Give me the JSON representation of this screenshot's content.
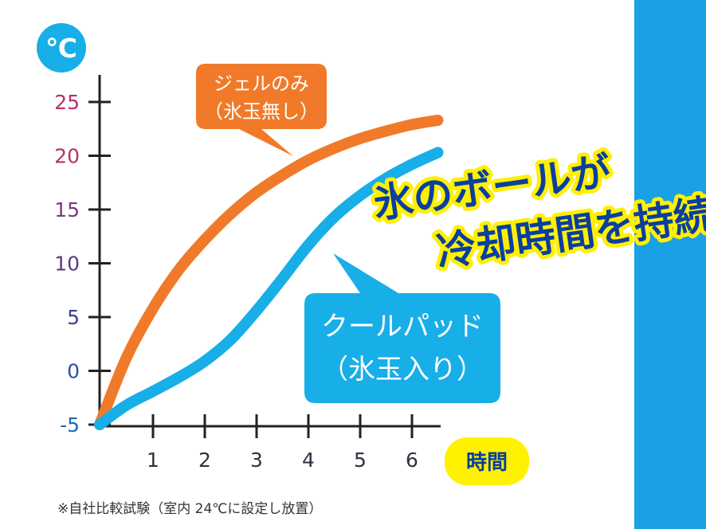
{
  "chart_data": {
    "type": "line",
    "y_unit": "℃",
    "x_unit": "時間",
    "x_ticks": [
      "1",
      "2",
      "3",
      "4",
      "5",
      "6"
    ],
    "y_ticks": [
      "25",
      "20",
      "15",
      "10",
      "5",
      "0",
      "-5"
    ],
    "ylim": [
      -5,
      25
    ],
    "xlim": [
      0,
      6.5
    ],
    "series": [
      {
        "name": "ジェルのみ（氷玉無し）",
        "color": "#f07a2a",
        "x": [
          0,
          0.5,
          1,
          1.5,
          2,
          2.5,
          3,
          3.5,
          4,
          4.5,
          5,
          5.5,
          6,
          6.5
        ],
        "y": [
          -5,
          1.2,
          5.8,
          9.4,
          12.2,
          14.6,
          16.6,
          18.2,
          19.6,
          20.7,
          21.6,
          22.3,
          22.9,
          23.3
        ]
      },
      {
        "name": "クールパッド（氷玉入り）",
        "color": "#18aee8",
        "x": [
          0,
          0.5,
          1,
          1.5,
          2,
          2.5,
          3,
          3.5,
          4,
          4.5,
          5,
          5.5,
          6,
          6.5
        ],
        "y": [
          -5,
          -3.2,
          -1.9,
          -0.6,
          0.9,
          2.9,
          5.6,
          8.6,
          11.7,
          14.3,
          16.3,
          17.9,
          19.2,
          20.3
        ]
      }
    ],
    "legend_placement": "callouts"
  },
  "callouts": {
    "gel_line1": "ジェルのみ",
    "gel_line2": "（氷玉無し）",
    "pad_line1": "クールパッド",
    "pad_line2": "（氷玉入り）"
  },
  "headline": {
    "line1": "氷のボールが",
    "line2": "冷却時間を持続"
  },
  "footnote": "※自社比較試験（室内 24℃に設定し放置）",
  "colors": {
    "orange": "#f07a2a",
    "blue": "#18aee8",
    "headline_fill": "#0a3fa0",
    "headline_stroke": "#fff000",
    "time_badge": "#fff200",
    "side_panel": "#1aa0e4",
    "unit_badge": "#18aee8",
    "ytick_colors": [
      "#b83068",
      "#b83068",
      "#7a3a78",
      "#5a3c84",
      "#3f3f94",
      "#2a52a6",
      "#1f6aba"
    ]
  }
}
